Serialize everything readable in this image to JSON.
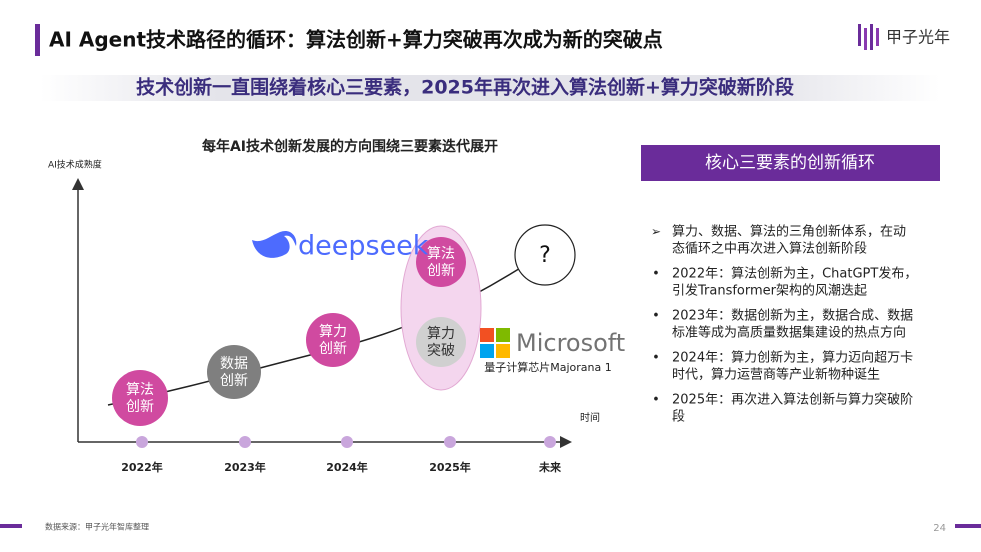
{
  "header": {
    "title": "AI Agent技术路径的循环：算法创新+算力突破再次成为新的突破点",
    "logo": "甲子光年"
  },
  "subtitle": "技术创新一直围绕着核心三要素，2025年再次进入算法创新+算力突破新阶段",
  "diagram": {
    "title": "每年AI技术创新发展的方向围绕三要素迭代展开",
    "y_axis_label": "AI技术成熟度",
    "x_axis_label": "时间",
    "years": [
      "2022年",
      "2023年",
      "2024年",
      "2025年",
      "未来"
    ],
    "nodes": [
      [
        "算法",
        "创新"
      ],
      [
        "数据",
        "创新"
      ],
      [
        "算力",
        "创新"
      ],
      [
        "算法",
        "创新"
      ],
      [
        "算力",
        "突破"
      ]
    ],
    "question": "?",
    "deepseek": "deepseek",
    "microsoft": "Microsoft",
    "microsoft_caption": "量子计算芯片Majorana 1"
  },
  "panel": {
    "title": "核心三要素的创新循环",
    "bullets": [
      [
        "算力、数据、算法的三角创新体系，在动",
        "态循环之中再次进入算法创新阶段"
      ],
      [
        "2022年：算法创新为主，ChatGPT发布，",
        "引发Transformer架构的风潮迭起"
      ],
      [
        "2023年：数据创新为主，数据合成、数据",
        "标准等成为高质量数据集建设的热点方向"
      ],
      [
        "2024年：算力创新为主，算力迈向超万卡",
        "时代，算力运营商等产业新物种诞生"
      ],
      [
        "2025年：再次进入算法创新与算力突破阶",
        "段"
      ]
    ]
  },
  "footer": {
    "source": "数据来源：甲子光年智库整理",
    "page": "24"
  }
}
